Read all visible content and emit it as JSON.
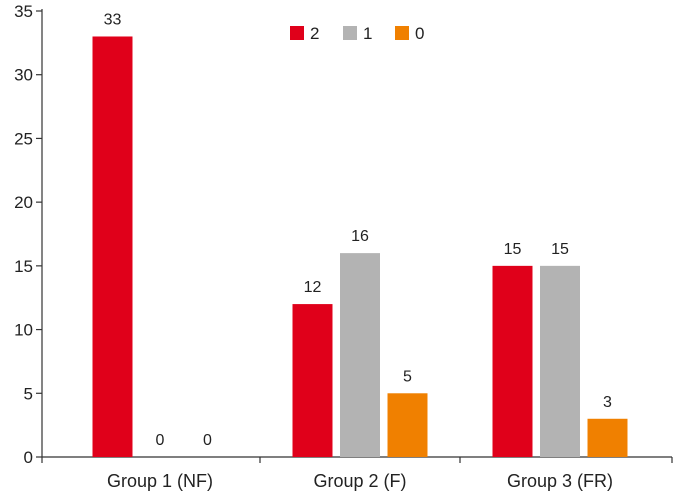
{
  "chart_data": {
    "type": "bar",
    "title": "",
    "xlabel": "",
    "ylabel": "",
    "categories": [
      "Group 1 (NF)",
      "Group 2 (F)",
      "Group 3 (FR)"
    ],
    "series": [
      {
        "name": "2",
        "color": "#e0001a",
        "values": [
          33,
          12,
          15
        ]
      },
      {
        "name": "1",
        "color": "#b3b3b3",
        "values": [
          0,
          16,
          15
        ]
      },
      {
        "name": "0",
        "color": "#f08000",
        "values": [
          0,
          5,
          3
        ]
      }
    ],
    "ylim": [
      0,
      35
    ],
    "yticks": [
      0,
      5,
      10,
      15,
      20,
      25,
      30,
      35
    ],
    "grid": false,
    "legend_position": "top-center",
    "data_labels": true
  }
}
